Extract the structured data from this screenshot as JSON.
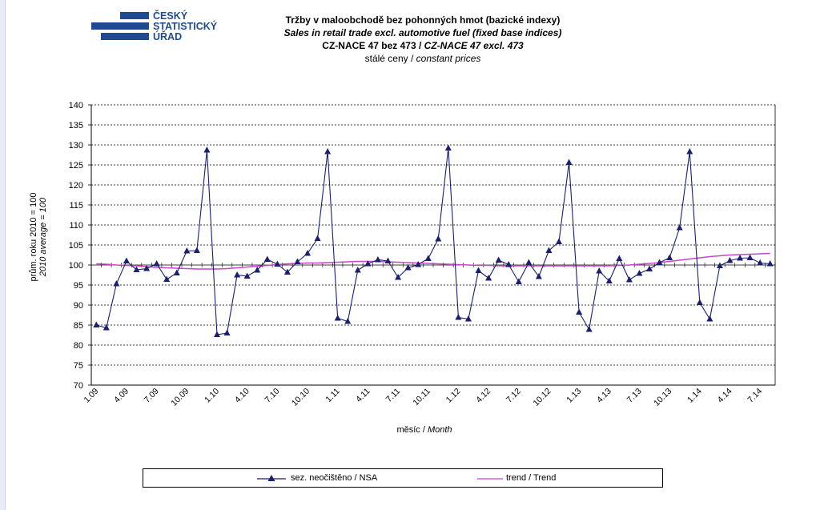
{
  "logo": {
    "line1": "ČESKÝ",
    "line2": "STATISTICKÝ",
    "line3": "ÚŘAD",
    "color": "#1e4b8f"
  },
  "title": {
    "line1": "Tržby v maloobchodě  bez pohonných  hmot (bazické indexy)",
    "line2": "Sales in retail trade excl. automotive fuel (fixed base indices)",
    "line3_a": "CZ-NACE 47 bez 473 / ",
    "line3_b": "CZ-NACE 47 excl. 473",
    "line4_a": "stálé ceny / ",
    "line4_b": "constant  prices"
  },
  "axes": {
    "ylabel_a": "prům. roku 2010 = 100",
    "ylabel_b": "2010 average = 100",
    "xlabel_a": "měsíc / ",
    "xlabel_b": "Month"
  },
  "legend": {
    "nsa": "sez. neočištěno / NSA",
    "trend": "trend / Trend"
  },
  "chart_data": {
    "type": "line",
    "ylim": [
      70,
      140
    ],
    "yticks": [
      70,
      75,
      80,
      85,
      90,
      95,
      100,
      105,
      110,
      115,
      120,
      125,
      130,
      135,
      140
    ],
    "grid": true,
    "legend_placement": "bottom",
    "x": [
      "1.09",
      "2.09",
      "3.09",
      "4.09",
      "5.09",
      "6.09",
      "7.09",
      "8.09",
      "9.09",
      "10.09",
      "11.09",
      "12.09",
      "1.10",
      "2.10",
      "3.10",
      "4.10",
      "5.10",
      "6.10",
      "7.10",
      "8.10",
      "9.10",
      "10.10",
      "11.10",
      "12.10",
      "1.11",
      "2.11",
      "3.11",
      "4.11",
      "5.11",
      "6.11",
      "7.11",
      "8.11",
      "9.11",
      "10.11",
      "11.11",
      "12.11",
      "1.12",
      "2.12",
      "3.12",
      "4.12",
      "5.12",
      "6.12",
      "7.12",
      "8.12",
      "9.12",
      "10.12",
      "11.12",
      "12.12",
      "1.13",
      "2.13",
      "3.13",
      "4.13",
      "5.13",
      "6.13",
      "7.13",
      "8.13",
      "9.13",
      "10.13",
      "11.13",
      "12.13",
      "1.14",
      "2.14",
      "3.14",
      "4.14",
      "5.14",
      "6.14",
      "7.14",
      "8.14"
    ],
    "x_tick_labels": [
      "1.09",
      "4.09",
      "7.09",
      "10.09",
      "1.10",
      "4.10",
      "7.10",
      "10.10",
      "1.11",
      "4.11",
      "7.11",
      "10.11",
      "1.12",
      "4.12",
      "7.12",
      "10.12",
      "1.13",
      "4.13",
      "7.13",
      "10.13",
      "1.14",
      "4.14",
      "7.14"
    ],
    "series": [
      {
        "name": "sez. neočištěno / NSA",
        "color": "#1a1f6e",
        "marker": "triangle",
        "values": [
          85.0,
          84.3,
          95.3,
          101.0,
          98.8,
          99.1,
          100.3,
          96.4,
          98.0,
          103.5,
          103.6,
          128.7,
          82.6,
          83.0,
          97.5,
          97.2,
          98.7,
          101.4,
          100.2,
          98.2,
          100.8,
          102.9,
          106.6,
          128.3,
          86.7,
          85.9,
          98.7,
          100.3,
          101.3,
          101.0,
          96.9,
          99.3,
          100.1,
          101.6,
          106.5,
          129.2,
          86.9,
          86.5,
          98.6,
          96.7,
          101.2,
          100.1,
          95.8,
          100.6,
          97.1,
          103.6,
          105.8,
          125.6,
          88.2,
          83.9,
          98.5,
          96.0,
          101.6,
          96.3,
          97.9,
          99.0,
          100.6,
          101.8,
          109.3,
          128.3,
          90.6,
          86.5,
          99.8,
          101.1,
          101.7,
          101.8,
          100.5,
          100.3
        ]
      },
      {
        "name": "trend / Trend",
        "color": "#cc44cc",
        "values": [
          100.3,
          100.2,
          100.0,
          99.9,
          99.8,
          99.6,
          99.4,
          99.3,
          99.2,
          99.1,
          99.0,
          99.0,
          99.0,
          99.1,
          99.3,
          99.5,
          99.7,
          99.9,
          100.1,
          100.3,
          100.4,
          100.5,
          100.5,
          100.6,
          100.7,
          100.8,
          100.9,
          100.9,
          100.9,
          100.8,
          100.7,
          100.6,
          100.5,
          100.4,
          100.3,
          100.2,
          100.1,
          100.0,
          99.9,
          99.9,
          99.8,
          99.8,
          99.8,
          99.8,
          99.8,
          99.8,
          99.8,
          99.8,
          99.8,
          99.8,
          99.8,
          99.8,
          99.9,
          100.0,
          100.2,
          100.4,
          100.6,
          100.9,
          101.2,
          101.5,
          101.8,
          102.1,
          102.3,
          102.5,
          102.6,
          102.7,
          102.8,
          102.9
        ]
      }
    ]
  }
}
